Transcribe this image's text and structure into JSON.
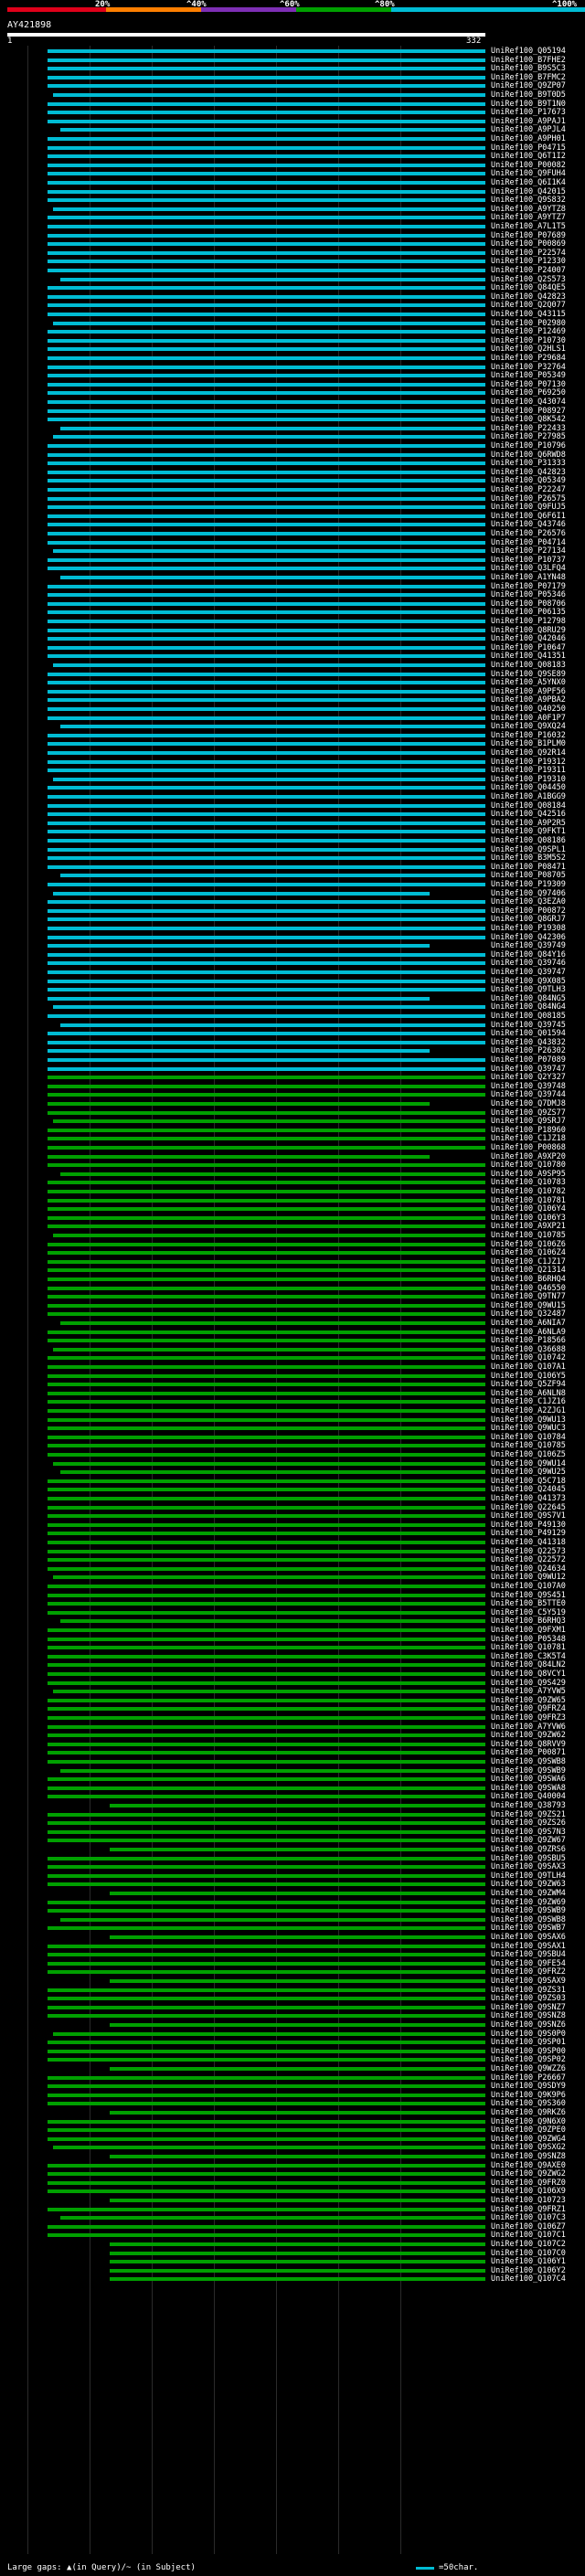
{
  "legend": {
    "ticks": [
      "20%",
      "^40%",
      "^60%",
      "^80%",
      "^100%"
    ],
    "colors": {
      "c20": "#e0001a",
      "c40": "#ff7f00",
      "c60": "#7e2fb5",
      "c80": "#00a000",
      "c100": "#00bcd4"
    }
  },
  "query": {
    "name": "AY421898",
    "start": "1",
    "end": "332"
  },
  "footer": {
    "large_gaps": "Large gaps: ▲(in Query)/~ (in Subject)",
    "scale": "=50char."
  },
  "hits": [
    "UniRef100_Q05194",
    "UniRef100_B7FHE2",
    "UniRef100_B9S5C3",
    "UniRef100_B7FMC2",
    "UniRef100_Q9ZP07",
    "UniRef100_B9T0D5",
    "UniRef100_B9T1N0",
    "UniRef100_P17673",
    "UniRef100_A9PAJ1",
    "UniRef100_A9PJL4",
    "UniRef100_A9PH01",
    "UniRef100_P04715",
    "UniRef100_Q6T1I2",
    "UniRef100_P00082",
    "UniRef100_Q9FUH4",
    "UniRef100_Q6I1K4",
    "UniRef100_Q42015",
    "UniRef100_Q9S832",
    "UniRef100_A9YTZ8",
    "UniRef100_A9YTZ7",
    "UniRef100_A7L1T5",
    "UniRef100_P07689",
    "UniRef100_P00869",
    "UniRef100_P22574",
    "UniRef100_P12330",
    "UniRef100_P24007",
    "UniRef100_Q2S573",
    "UniRef100_Q84QE5",
    "UniRef100_Q42823",
    "UniRef100_Q2Q077",
    "UniRef100_Q43115",
    "UniRef100_P02980",
    "UniRef100_P12469",
    "UniRef100_P10730",
    "UniRef100_Q2HLS1",
    "UniRef100_P29684",
    "UniRef100_P32764",
    "UniRef100_P05349",
    "UniRef100_P07130",
    "UniRef100_P69250",
    "UniRef100_Q43074",
    "UniRef100_P08927",
    "UniRef100_Q8K542",
    "UniRef100_P22433",
    "UniRef100_P27985",
    "UniRef100_P10796",
    "UniRef100_Q6RWD8",
    "UniRef100_P31333",
    "UniRef100_Q42823",
    "UniRef100_Q05349",
    "UniRef100_P22247",
    "UniRef100_P26575",
    "UniRef100_Q9FUJ5",
    "UniRef100_Q6F6I1",
    "UniRef100_Q43746",
    "UniRef100_P26576",
    "UniRef100_P04714",
    "UniRef100_P27134",
    "UniRef100_P10737",
    "UniRef100_Q3LFQ4",
    "UniRef100_A1YN48",
    "UniRef100_P07179",
    "UniRef100_P05346",
    "UniRef100_P08706",
    "UniRef100_P06135",
    "UniRef100_P12798",
    "UniRef100_Q8RU29",
    "UniRef100_Q42046",
    "UniRef100_P10647",
    "UniRef100_Q41351",
    "UniRef100_Q08183",
    "UniRef100_Q9SE89",
    "UniRef100_A5YNX0",
    "UniRef100_A9PF56",
    "UniRef100_A9PBA2",
    "UniRef100_Q40250",
    "UniRef100_A0F1P7",
    "UniRef100_Q9XQ24",
    "UniRef100_P16032",
    "UniRef100_B1PLM0",
    "UniRef100_Q92R14",
    "UniRef100_P19312",
    "UniRef100_P19311",
    "UniRef100_P19310",
    "UniRef100_Q04450",
    "UniRef100_A1BGG9",
    "UniRef100_Q08184",
    "UniRef100_Q42516",
    "UniRef100_A9P2R5",
    "UniRef100_Q9FKT1",
    "UniRef100_Q08186",
    "UniRef100_Q9SPL1",
    "UniRef100_B3M5S2",
    "UniRef100_P08471",
    "UniRef100_P08705",
    "UniRef100_P19309",
    "UniRef100_Q97406",
    "UniRef100_Q3EZA0",
    "UniRef100_P00872",
    "UniRef100_Q8GRJ7",
    "UniRef100_P19308",
    "UniRef100_Q42306",
    "UniRef100_Q39749",
    "UniRef100_Q84Y16",
    "UniRef100_Q39746",
    "UniRef100_Q39747",
    "UniRef100_Q9X085",
    "UniRef100_Q9TLH3",
    "UniRef100_Q84NG5",
    "UniRef100_Q84NG4",
    "UniRef100_Q08185",
    "UniRef100_Q39745",
    "UniRef100_Q01594",
    "UniRef100_Q43832",
    "UniRef100_P26302",
    "UniRef100_P07089",
    "UniRef100_Q39747",
    "UniRef100_Q2Y327",
    "UniRef100_Q39748",
    "UniRef100_Q39744",
    "UniRef100_Q7DMJ8",
    "UniRef100_Q9ZS77",
    "UniRef100_Q9SRJ7",
    "UniRef100_P18960",
    "UniRef100_C1JZ18",
    "UniRef100_P00868",
    "UniRef100_A9XP20",
    "UniRef100_Q10780",
    "UniRef100_A9SP95",
    "UniRef100_Q10783",
    "UniRef100_Q10782",
    "UniRef100_Q10781",
    "UniRef100_Q106Y4",
    "UniRef100_Q106Y3",
    "UniRef100_A9XP21",
    "UniRef100_Q10785",
    "UniRef100_Q106Z6",
    "UniRef100_Q106Z4",
    "UniRef100_C1JZ17",
    "UniRef100_Q21314",
    "UniRef100_B6RHQ4",
    "UniRef100_Q46550",
    "UniRef100_Q9TN77",
    "UniRef100_Q9WU15",
    "UniRef100_Q32487",
    "UniRef100_A6NIA7",
    "UniRef100_A6NLA9",
    "UniRef100_P18566",
    "UniRef100_Q36688",
    "UniRef100_Q10742",
    "UniRef100_Q107A1",
    "UniRef100_Q106Y5",
    "UniRef100_Q5ZF94",
    "UniRef100_A6NLN8",
    "UniRef100_C1JZ16",
    "UniRef100_A2ZJG1",
    "UniRef100_Q9WU13",
    "UniRef100_Q9WUC3",
    "UniRef100_Q10784",
    "UniRef100_Q10785",
    "UniRef100_Q106Z5",
    "UniRef100_Q9WU14",
    "UniRef100_Q9WU25",
    "UniRef100_Q5C718",
    "UniRef100_Q24045",
    "UniRef100_Q41373",
    "UniRef100_Q22645",
    "UniRef100_Q9S7V1",
    "UniRef100_P49130",
    "UniRef100_P49129",
    "UniRef100_Q41318",
    "UniRef100_Q22573",
    "UniRef100_Q22572",
    "UniRef100_Q24634",
    "UniRef100_Q9WU12",
    "UniRef100_Q107A0",
    "UniRef100_Q9S451",
    "UniRef100_B5TTE0",
    "UniRef100_C5Y519",
    "UniRef100_B6RHQ3",
    "UniRef100_Q9FXM1",
    "UniRef100_P05348",
    "UniRef100_Q10781",
    "UniRef100_C3K5T4",
    "UniRef100_Q84LN2",
    "UniRef100_Q8VCY1",
    "UniRef100_Q9S429",
    "UniRef100_A7YVW5",
    "UniRef100_Q9ZW65",
    "UniRef100_Q9FRZ4",
    "UniRef100_Q9FRZ3",
    "UniRef100_A7YVW6",
    "UniRef100_Q9ZW62",
    "UniRef100_Q8RVV9",
    "UniRef100_P00871",
    "UniRef100_Q9SWB8",
    "UniRef100_Q9SWB9",
    "UniRef100_Q9SWA6",
    "UniRef100_Q9SWA8",
    "UniRef100_Q40004",
    "UniRef100_Q38793",
    "UniRef100_Q9ZS21",
    "UniRef100_Q9ZS26",
    "UniRef100_Q9S7N3",
    "UniRef100_Q9ZW67",
    "UniRef100_Q9ZRS6",
    "UniRef100_Q9SBU5",
    "UniRef100_Q9SAX3",
    "UniRef100_Q9TLH4",
    "UniRef100_Q9ZW63",
    "UniRef100_Q9ZWM4",
    "UniRef100_Q9ZW69",
    "UniRef100_Q9SWB9",
    "UniRef100_Q9SWB8",
    "UniRef100_Q9SWB7",
    "UniRef100_Q9SAX6",
    "UniRef100_Q9SAX1",
    "UniRef100_Q9SBU4",
    "UniRef100_Q9FE54",
    "UniRef100_Q9FRZ2",
    "UniRef100_Q9SAX9",
    "UniRef100_Q9ZS31",
    "UniRef100_Q9ZS03",
    "UniRef100_Q9SNZ7",
    "UniRef100_Q9SNZ8",
    "UniRef100_Q9SNZ6",
    "UniRef100_Q9S0P0",
    "UniRef100_Q9SP01",
    "UniRef100_Q9SP00",
    "UniRef100_Q9SP02",
    "UniRef100_Q9WZZ6",
    "UniRef100_P26667",
    "UniRef100_Q9SDY9",
    "UniRef100_Q9K9P6",
    "UniRef100_Q9S360",
    "UniRef100_Q9RKZ6",
    "UniRef100_Q9N6X0",
    "UniRef100_Q9ZPE0",
    "UniRef100_Q9ZWG4",
    "UniRef100_Q9SXG2",
    "UniRef100_Q9SNZ8",
    "UniRef100_Q9AXE0",
    "UniRef100_Q9ZWG2",
    "UniRef100_Q9FRZ0",
    "UniRef100_Q106X9",
    "UniRef100_Q10723",
    "UniRef100_Q9FRZ1",
    "UniRef100_Q107C3",
    "UniRef100_Q106Z7",
    "UniRef100_Q107C1",
    "UniRef100_Q107C2",
    "UniRef100_Q107C0",
    "UniRef100_Q106Y1",
    "UniRef100_Q106Y2",
    "UniRef100_Q107C4"
  ]
}
